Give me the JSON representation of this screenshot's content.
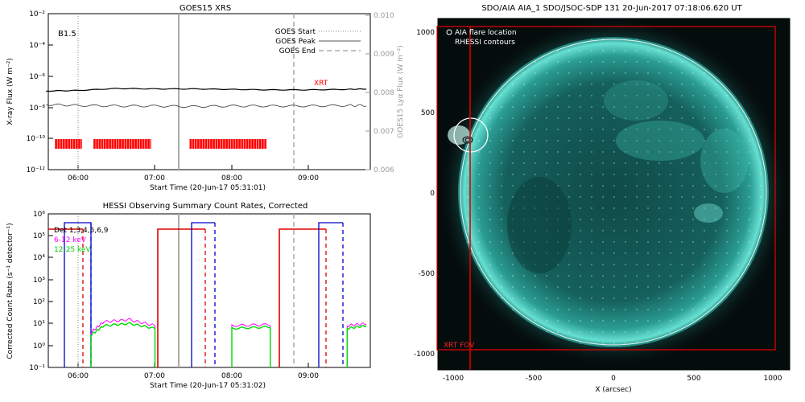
{
  "goes": {
    "title": "GOES15 XRS",
    "class_label": "B1.5",
    "ylabel_left": "X-ray Flux (W m⁻²)",
    "ylabel_right": "GOES15 Lyα Flux (W m⁻²)",
    "xlabel": "Start Time (20-Jun-17 05:31:01)",
    "left_ticks": [
      "10⁻²",
      "10⁻⁴",
      "10⁻⁶",
      "10⁻⁸",
      "10⁻¹⁰",
      "10⁻¹²"
    ],
    "right_ticks": [
      "0.010",
      "0.009",
      "0.008",
      "0.007",
      "0.006"
    ],
    "x_ticks": [
      "06:00",
      "07:00",
      "08:00",
      "09:00"
    ],
    "legend": [
      {
        "label": "GOES Start",
        "style": "dotted"
      },
      {
        "label": "GOES Peak",
        "style": "solid"
      },
      {
        "label": "GOES End",
        "style": "dashed"
      }
    ],
    "xrt_label": "XRT",
    "colors": {
      "xrt": "#ff0000",
      "lines": "#aaaaaa"
    }
  },
  "hessi": {
    "title": "HESSI Observing Summary Count Rates, Corrected",
    "ylabel": "Corrected Count Rate (s⁻¹ detector⁻¹)",
    "xlabel": "Start Time (20-Jun-17 05:31:02)",
    "y_ticks": [
      "10⁶",
      "10⁵",
      "10⁴",
      "10³",
      "10²",
      "10¹",
      "10⁰",
      "10⁻¹"
    ],
    "x_ticks": [
      "06:00",
      "07:00",
      "08:00",
      "09:00"
    ],
    "legend": [
      {
        "label": "Det 1,3,4,5,6,9",
        "color": "#000000"
      },
      {
        "label": "6-12 keV",
        "color": "#ff00ff"
      },
      {
        "label": "12-25 keV",
        "color": "#00dd00"
      }
    ]
  },
  "aia": {
    "title": "SDO/AIA AIA_1 SDO/JSOC-SDP 131 20-Jun-2017 07:18:06.620 UT",
    "legend_flare": "AIA flare location",
    "legend_rhessi": "RHESSI contours",
    "xrt_fov_label": "XRT FOV",
    "xlabel": "X (arcsec)",
    "x_ticks": [
      "-1000",
      "-500",
      "0",
      "500",
      "1000"
    ],
    "y_ticks": [
      "1000",
      "500",
      "0",
      "-500",
      "-1000"
    ],
    "colors": {
      "disk": "#3fbfb0",
      "fov": "#dd0000"
    }
  },
  "chart_data": [
    {
      "type": "line",
      "title": "GOES15 XRS",
      "xlabel": "Start Time (20-Jun-17 05:31:01)",
      "ylabel": "X-ray Flux (W m⁻²)",
      "ylabel_right": "GOES15 Lyα Flux (W m⁻²)",
      "y_scale": "log",
      "ylim": [
        1e-12,
        0.01
      ],
      "ylim_right": [
        0.006,
        0.01
      ],
      "x": [
        "05:35",
        "06:00",
        "06:30",
        "07:00",
        "07:30",
        "08:00",
        "08:30",
        "09:00",
        "09:30",
        "09:45"
      ],
      "series": [
        {
          "values": [
            1.1e-07,
            1.2e-07,
            1.6e-07,
            1.5e-07,
            1.5e-07,
            1.4e-07,
            1.3e-07,
            1.3e-07,
            1.4e-07,
            1.5e-07
          ]
        },
        {
          "values": [
            1.5e-08,
            1.3e-08,
            1.2e-08,
            1.2e-08,
            1.1e-08,
            1.2e-08,
            1.2e-08,
            1.2e-08,
            1.3e-08,
            1.3e-08
          ]
        }
      ],
      "markers": {
        "GOES Start": "06:00",
        "GOES Peak": "07:18",
        "GOES End": "08:51"
      },
      "xrt_intervals": [
        [
          "05:42",
          "06:03"
        ],
        [
          "06:12",
          "06:57"
        ],
        [
          "07:27",
          "08:27"
        ]
      ],
      "legend_position": "top-right"
    },
    {
      "type": "line",
      "title": "HESSI Observing Summary Count Rates, Corrected",
      "xlabel": "Start Time (20-Jun-17 05:31:02)",
      "ylabel": "Corrected Count Rate (s⁻¹ detector⁻¹)",
      "y_scale": "log",
      "ylim": [
        0.1,
        1000000.0
      ],
      "x": [
        "05:31",
        "05:58",
        "06:10",
        "06:20",
        "06:40",
        "07:00",
        "07:12",
        "07:45",
        "08:00",
        "08:30",
        "08:45",
        "09:23",
        "09:30",
        "09:45"
      ],
      "series": [
        {
          "name": "6-12 keV",
          "values": [
            5,
            null,
            4,
            12,
            15,
            8,
            null,
            null,
            8,
            9,
            null,
            null,
            8,
            10
          ]
        },
        {
          "name": "12-25 keV",
          "values": [
            5,
            null,
            3,
            8,
            10,
            6,
            null,
            null,
            6,
            7,
            null,
            null,
            6,
            8
          ]
        }
      ],
      "legend_position": "top-left"
    }
  ]
}
